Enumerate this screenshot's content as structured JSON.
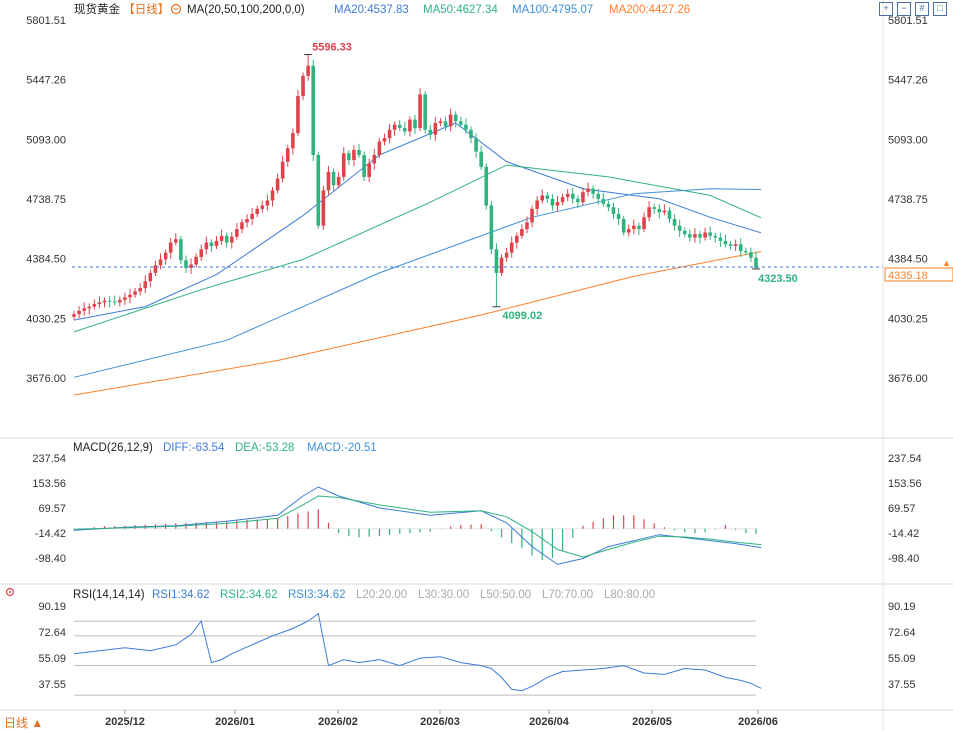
{
  "title": "现货黄金",
  "period": "【日线】",
  "period_button": "日线 ▲",
  "settings_icon": "gear-icon",
  "colors": {
    "up": "#e0424b",
    "down": "#2fb37f",
    "ma20": "#3d7bd9",
    "ma50": "#2fb37f",
    "ma100": "#3d8fd9",
    "ma200": "#ff7f27",
    "grid_dash": "#3d7bd9",
    "axis_text": "#333333",
    "price_tag": "#ff7f27"
  },
  "toolbar_icons": [
    "expand-icon",
    "compress-icon",
    "grid-icon",
    "fullscreen-icon"
  ],
  "legend_main": {
    "ma_label": "MA(20,50,100,200,0,0)",
    "ma20": "MA20:4537.83",
    "ma50": "MA50:4627.34",
    "ma100": "MA100:4795.07",
    "ma200": "MA200:4427.26"
  },
  "legend_macd": {
    "label": "MACD(26,12,9)",
    "diff": "DIFF:-63.54",
    "dea": "DEA:-53.28",
    "macd": "MACD:-20.51"
  },
  "legend_rsi": {
    "label": "RSI(14,14,14)",
    "rsi1": "RSI1:34.62",
    "rsi2": "RSI2:34.62",
    "rsi3": "RSI3:34.62",
    "l20": "L20:20.00",
    "l30": "L30:30.00",
    "l50": "L50:50.00",
    "l70": "L70:70.00",
    "l80": "L80:80.00"
  },
  "chart_data": {
    "type": "candlestick",
    "price_axis": {
      "range": [
        3500,
        5850
      ],
      "ticks": [
        "5801.51",
        "5447.26",
        "5093.00",
        "4738.75",
        "4384.50",
        "4030.25",
        "3676.00"
      ]
    },
    "macd_axis": {
      "range": [
        -140,
        270
      ],
      "ticks": [
        "237.54",
        "153.56",
        "69.57",
        "-14.42",
        "-98.40"
      ]
    },
    "rsi_axis": {
      "range": [
        25,
        95
      ],
      "ticks": [
        "90.19",
        "72.64",
        "55.09",
        "37.55"
      ],
      "levels": [
        80,
        70,
        50,
        30,
        20
      ]
    },
    "x_labels": [
      "2025/12",
      "2026/01",
      "2026/02",
      "2026/03",
      "2026/04",
      "2026/05",
      "2026/06"
    ],
    "last_price": "4335.18",
    "last_price_value": 4335.18,
    "annotations": {
      "high": {
        "label": "5596.33",
        "value": 5596.33
      },
      "low": {
        "label": "4099.02",
        "value": 4099.02
      },
      "recent_low": {
        "label": "4323.50",
        "value": 4323.5
      }
    },
    "closes": [
      4055,
      4075,
      4090,
      4100,
      4115,
      4125,
      4135,
      4130,
      4125,
      4140,
      4155,
      4170,
      4190,
      4210,
      4250,
      4300,
      4345,
      4380,
      4420,
      4480,
      4500,
      4375,
      4330,
      4350,
      4395,
      4440,
      4480,
      4460,
      4490,
      4520,
      4480,
      4515,
      4560,
      4600,
      4620,
      4650,
      4680,
      4700,
      4730,
      4790,
      4860,
      4960,
      5040,
      5130,
      5350,
      5470,
      5530,
      5000,
      4580,
      4790,
      4900,
      4820,
      4870,
      5010,
      4970,
      5030,
      5000,
      4870,
      4950,
      5000,
      5080,
      5100,
      5150,
      5180,
      5160,
      5140,
      5210,
      5160,
      5360,
      5150,
      5120,
      5190,
      5200,
      5170,
      5240,
      5200,
      5180,
      5150,
      5100,
      5020,
      4930,
      4700,
      4440,
      4300,
      4390,
      4420,
      4480,
      4520,
      4560,
      4600,
      4680,
      4730,
      4760,
      4740,
      4700,
      4720,
      4750,
      4770,
      4740,
      4720,
      4780,
      4800,
      4770,
      4740,
      4710,
      4690,
      4650,
      4620,
      4540,
      4560,
      4580,
      4560,
      4630,
      4690,
      4680,
      4660,
      4670,
      4620,
      4580,
      4550,
      4530,
      4510,
      4530,
      4510,
      4540,
      4520,
      4510,
      4490,
      4470,
      4460,
      4470,
      4430,
      4423,
      4390,
      4330
    ],
    "series": [
      {
        "name": "MA20",
        "points": [
          [
            0,
            4020
          ],
          [
            14,
            4100
          ],
          [
            28,
            4290
          ],
          [
            45,
            4640
          ],
          [
            60,
            5000
          ],
          [
            75,
            5190
          ],
          [
            85,
            4960
          ],
          [
            100,
            4800
          ],
          [
            115,
            4740
          ],
          [
            125,
            4630
          ],
          [
            135,
            4537.83
          ]
        ]
      },
      {
        "name": "MA50",
        "points": [
          [
            0,
            3950
          ],
          [
            25,
            4200
          ],
          [
            45,
            4380
          ],
          [
            70,
            4720
          ],
          [
            85,
            4940
          ],
          [
            105,
            4870
          ],
          [
            125,
            4760
          ],
          [
            135,
            4627.34
          ]
        ]
      },
      {
        "name": "MA100",
        "points": [
          [
            0,
            3680
          ],
          [
            30,
            3900
          ],
          [
            60,
            4300
          ],
          [
            90,
            4630
          ],
          [
            110,
            4770
          ],
          [
            125,
            4800
          ],
          [
            135,
            4795.07
          ]
        ]
      },
      {
        "name": "MA200",
        "points": [
          [
            0,
            3575
          ],
          [
            40,
            3780
          ],
          [
            80,
            4050
          ],
          [
            110,
            4280
          ],
          [
            135,
            4427.26
          ]
        ]
      }
    ],
    "macd": {
      "diff": [
        [
          0,
          -5
        ],
        [
          10,
          5
        ],
        [
          20,
          10
        ],
        [
          30,
          25
        ],
        [
          40,
          45
        ],
        [
          45,
          110
        ],
        [
          48,
          140
        ],
        [
          52,
          110
        ],
        [
          60,
          70
        ],
        [
          70,
          45
        ],
        [
          80,
          60
        ],
        [
          85,
          20
        ],
        [
          90,
          -60
        ],
        [
          95,
          -120
        ],
        [
          100,
          -100
        ],
        [
          105,
          -60
        ],
        [
          110,
          -40
        ],
        [
          115,
          -20
        ],
        [
          120,
          -30
        ],
        [
          125,
          -40
        ],
        [
          130,
          -50
        ],
        [
          135,
          -63.54
        ]
      ],
      "dea": [
        [
          0,
          -2
        ],
        [
          10,
          3
        ],
        [
          20,
          8
        ],
        [
          30,
          18
        ],
        [
          40,
          35
        ],
        [
          45,
          80
        ],
        [
          48,
          110
        ],
        [
          52,
          105
        ],
        [
          60,
          80
        ],
        [
          70,
          55
        ],
        [
          80,
          60
        ],
        [
          85,
          40
        ],
        [
          90,
          -10
        ],
        [
          95,
          -70
        ],
        [
          100,
          -95
        ],
        [
          105,
          -70
        ],
        [
          110,
          -45
        ],
        [
          115,
          -25
        ],
        [
          120,
          -28
        ],
        [
          125,
          -35
        ],
        [
          130,
          -45
        ],
        [
          135,
          -53.28
        ]
      ],
      "hist": [
        [
          0,
          -6
        ],
        [
          5,
          8
        ],
        [
          10,
          10
        ],
        [
          15,
          14
        ],
        [
          20,
          18
        ],
        [
          25,
          22
        ],
        [
          30,
          26
        ],
        [
          35,
          30
        ],
        [
          40,
          35
        ],
        [
          45,
          55
        ],
        [
          48,
          65
        ],
        [
          50,
          20
        ],
        [
          52,
          -15
        ],
        [
          55,
          -30
        ],
        [
          60,
          -25
        ],
        [
          65,
          -15
        ],
        [
          70,
          -10
        ],
        [
          75,
          12
        ],
        [
          80,
          15
        ],
        [
          85,
          -40
        ],
        [
          88,
          -65
        ],
        [
          90,
          -90
        ],
        [
          92,
          -105
        ],
        [
          95,
          -95
        ],
        [
          98,
          -30
        ],
        [
          100,
          10
        ],
        [
          103,
          30
        ],
        [
          106,
          45
        ],
        [
          110,
          45
        ],
        [
          113,
          25
        ],
        [
          116,
          5
        ],
        [
          119,
          -10
        ],
        [
          122,
          -15
        ],
        [
          125,
          -10
        ],
        [
          128,
          12
        ],
        [
          131,
          -12
        ],
        [
          135,
          -20.51
        ]
      ]
    },
    "rsi": [
      [
        0,
        58
      ],
      [
        5,
        60
      ],
      [
        10,
        62
      ],
      [
        15,
        60
      ],
      [
        20,
        64
      ],
      [
        23,
        71
      ],
      [
        25,
        80
      ],
      [
        27,
        52
      ],
      [
        29,
        54
      ],
      [
        31,
        58
      ],
      [
        35,
        64
      ],
      [
        39,
        70
      ],
      [
        43,
        75
      ],
      [
        46,
        80
      ],
      [
        48,
        85
      ],
      [
        50,
        50
      ],
      [
        53,
        54
      ],
      [
        56,
        52
      ],
      [
        60,
        54
      ],
      [
        64,
        50
      ],
      [
        68,
        55
      ],
      [
        72,
        56
      ],
      [
        76,
        52
      ],
      [
        80,
        50
      ],
      [
        82,
        48
      ],
      [
        84,
        42
      ],
      [
        86,
        34
      ],
      [
        88,
        33
      ],
      [
        90,
        36
      ],
      [
        93,
        42
      ],
      [
        96,
        46
      ],
      [
        100,
        47
      ],
      [
        104,
        48
      ],
      [
        108,
        50
      ],
      [
        112,
        45
      ],
      [
        116,
        44
      ],
      [
        120,
        48
      ],
      [
        124,
        47
      ],
      [
        128,
        42
      ],
      [
        131,
        40
      ],
      [
        133,
        38
      ],
      [
        135,
        34.62
      ]
    ]
  }
}
